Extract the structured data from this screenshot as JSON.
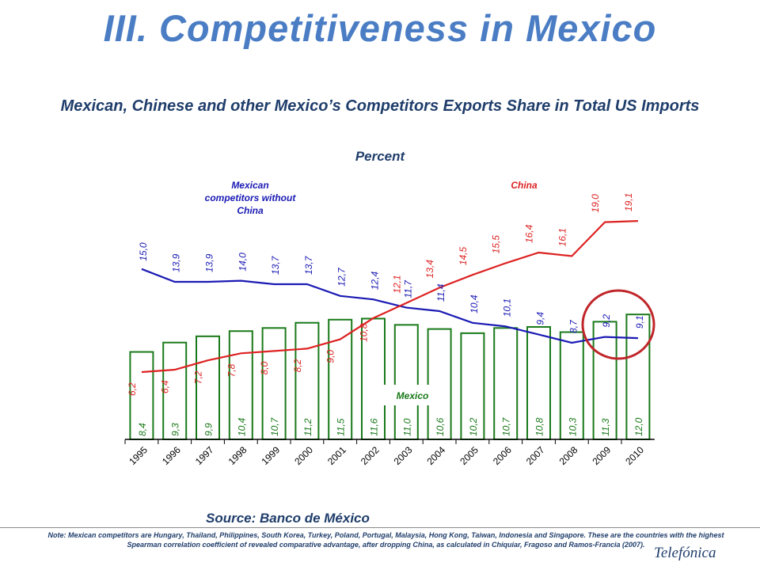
{
  "slide": {
    "title": "III. Competitiveness in Mexico",
    "source": "Source: Banco de México",
    "note": "Note: Mexican competitors are Hungary, Thailand, Philippines, South Korea, Turkey, Poland, Portugal, Malaysia, Hong Kong, Taiwan, Indonesia and Singapore. These are the countries with the highest Spearman correlation coefficient of revealed comparative advantage, after dropping China, as calculated in Chiquiar, Fragoso and Ramos-Francia (2007).",
    "logo_text": "Telefónica"
  },
  "chart_data": {
    "type": "bar+line",
    "title": "Mexican, Chinese and other Mexico’s Competitors Exports Share in Total US Imports",
    "subtitle": "Percent",
    "categories": [
      "1995",
      "1996",
      "1997",
      "1998",
      "1999",
      "2000",
      "2001",
      "2002",
      "2003",
      "2004",
      "2005",
      "2006",
      "2007",
      "2008",
      "2009",
      "2010"
    ],
    "series": [
      {
        "name": "Mexico",
        "type": "bar",
        "color": "#1a7a1a",
        "values": [
          8.4,
          9.3,
          9.9,
          10.4,
          10.7,
          11.2,
          11.5,
          11.6,
          11.0,
          10.6,
          10.2,
          10.7,
          10.8,
          10.3,
          11.3,
          12.0
        ],
        "labels": [
          "8,4",
          "9,3",
          "9,9",
          "10,4",
          "10,7",
          "11,2",
          "11,5",
          "11,6",
          "11,0",
          "10,6",
          "10,2",
          "10,7",
          "10,8",
          "10,3",
          "11,3",
          "12,0"
        ]
      },
      {
        "name": "Mexican competitors without China",
        "type": "line",
        "color": "#1a1ab4",
        "values": [
          15.0,
          13.9,
          13.9,
          14.0,
          13.7,
          13.7,
          12.7,
          12.4,
          11.7,
          11.4,
          10.4,
          10.1,
          9.4,
          8.7,
          9.2,
          9.1
        ],
        "labels": [
          "15,0",
          "13,9",
          "13,9",
          "14,0",
          "13,7",
          "13,7",
          "12,7",
          "12,4",
          "11,7",
          "11,4",
          "10,4",
          "10,1",
          "9,4",
          "8,7",
          "9,2",
          "9,1"
        ]
      },
      {
        "name": "China",
        "type": "line",
        "color": "#dd2222",
        "values": [
          6.2,
          6.4,
          7.2,
          7.8,
          8.0,
          8.2,
          9.0,
          10.8,
          12.1,
          13.4,
          14.5,
          15.5,
          16.4,
          16.1,
          19.0,
          19.1
        ],
        "labels": [
          "6,2",
          "6,4",
          "7,2",
          "7,8",
          "8,0",
          "8,2",
          "9,0",
          "10,8",
          "12,1",
          "13,4",
          "14,5",
          "15,5",
          "16,4",
          "16,1",
          "19,0",
          "19,1"
        ]
      }
    ],
    "legend_labels": {
      "competitors": [
        "Mexican",
        "competitors without",
        "China"
      ],
      "china": "China",
      "mexico": "Mexico"
    },
    "annotation": "circle around 2009–2010",
    "grid": false
  }
}
